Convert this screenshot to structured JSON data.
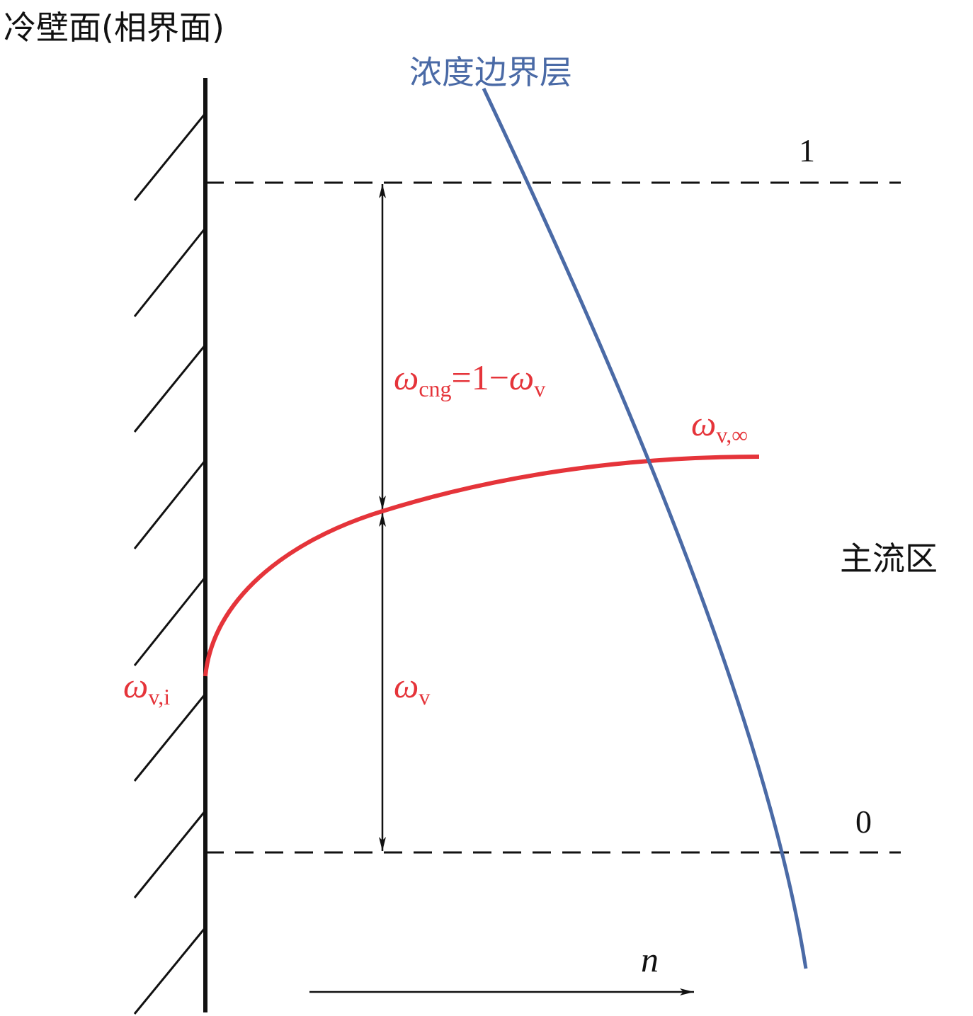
{
  "title": "冷壁面(相界面)",
  "boundary_layer_label": "浓度边界层",
  "main_flow_label": "主流区",
  "level_top": "1",
  "level_bottom": "0",
  "omega_cng": {
    "sym": "ω",
    "sub": "cng",
    "rest": "=1−",
    "sym2": "ω",
    "sub2": "v"
  },
  "omega_v_inf": {
    "sym": "ω",
    "sub": "v,∞"
  },
  "omega_v_i": {
    "sym": "ω",
    "sub": "v,i"
  },
  "omega_v": {
    "sym": "ω",
    "sub": "v"
  },
  "n_label": "n",
  "colors": {
    "red": "#e5343a",
    "blue": "#4a6aa6",
    "black": "#111111"
  }
}
